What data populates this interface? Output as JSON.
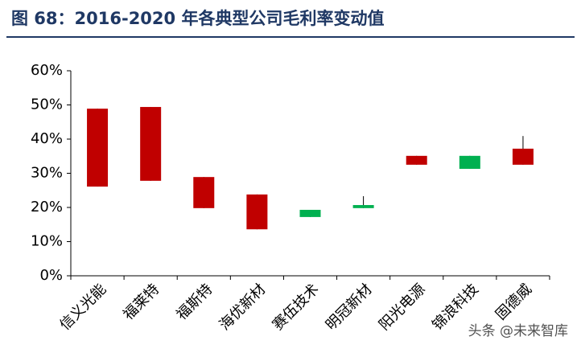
{
  "chart_data": {
    "type": "candlestick",
    "title": "图 68：2016-2020 年各典型公司毛利率变动值",
    "categories": [
      "信义光能",
      "福莱特",
      "福斯特",
      "海优新材",
      "赛伍技术",
      "明冠新材",
      "阳光电源",
      "锦浪科技",
      "固德威"
    ],
    "series": [
      {
        "open": [
          26.1,
          27.8,
          19.8,
          13.6,
          19.3,
          20.7,
          32.5,
          35.1,
          32.5
        ],
        "close": [
          48.9,
          49.4,
          28.9,
          23.8,
          17.2,
          19.8,
          35.1,
          31.3,
          37.2
        ],
        "high": [
          48.9,
          49.4,
          28.9,
          23.8,
          19.3,
          23.3,
          35.1,
          35.1,
          40.9
        ],
        "low": [
          26.1,
          27.8,
          19.8,
          13.6,
          17.2,
          19.8,
          32.5,
          31.3,
          32.5
        ]
      }
    ],
    "up_color": "#c00000",
    "down_color": "#00b050",
    "ylim": [
      0,
      60
    ],
    "yticks": [
      {
        "value": 0,
        "label": "0%"
      },
      {
        "value": 10,
        "label": "10%"
      },
      {
        "value": 20,
        "label": "20%"
      },
      {
        "value": 30,
        "label": "30%"
      },
      {
        "value": 40,
        "label": "40%"
      },
      {
        "value": 50,
        "label": "50%"
      },
      {
        "value": 60,
        "label": "60%"
      }
    ],
    "watermark": "头条 @未来智库"
  }
}
